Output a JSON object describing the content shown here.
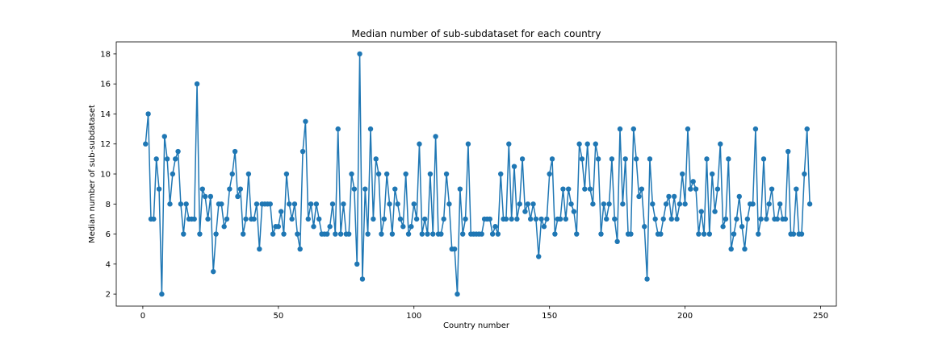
{
  "chart_data": {
    "type": "line",
    "title": "Median number of sub-subdataset for each country",
    "xlabel": "Country number",
    "ylabel": "Median number of sub-subdataset",
    "xlim": [
      -9.8,
      255.8
    ],
    "ylim": [
      1.2,
      18.8
    ],
    "xticks": [
      0,
      50,
      100,
      150,
      200,
      250
    ],
    "yticks": [
      2,
      4,
      6,
      8,
      10,
      12,
      14,
      16,
      18
    ],
    "grid": false,
    "marker": "circle",
    "color": "#1f77b4",
    "series": [
      {
        "values": [
          12,
          14,
          7,
          7,
          11,
          9,
          2,
          12.5,
          11,
          8,
          10,
          11,
          11.5,
          8,
          6,
          8,
          7,
          7,
          7,
          16,
          6,
          9,
          8.5,
          7,
          8.5,
          3.5,
          6,
          8,
          8,
          6.5,
          7,
          9,
          10,
          11.5,
          8.5,
          9,
          6,
          7,
          10,
          7,
          7,
          8,
          5,
          8,
          8,
          8,
          8,
          6,
          6.5,
          6.5,
          7.5,
          6,
          10,
          8,
          7,
          8,
          6,
          5,
          11.5,
          13.5,
          7,
          8,
          6.5,
          8,
          7,
          6,
          6,
          6,
          6.5,
          8,
          6,
          13,
          6,
          8,
          6,
          6,
          10,
          9,
          4,
          18,
          3,
          9,
          6,
          13,
          7,
          11,
          10,
          6,
          7,
          10,
          8,
          6,
          9,
          8,
          7,
          6.5,
          10,
          6,
          6.5,
          8,
          7,
          12,
          6,
          7,
          6,
          10,
          6,
          12.5,
          6,
          6,
          7,
          10,
          8,
          5,
          5,
          2,
          9,
          6,
          7,
          12,
          6,
          6,
          6,
          6,
          6,
          7,
          7,
          7,
          6,
          6.5,
          6,
          10,
          7,
          7,
          12,
          7,
          10.5,
          7,
          8,
          11,
          7.5,
          8,
          7,
          8,
          7,
          4.5,
          7,
          6.5,
          7,
          10,
          11,
          6,
          7,
          7,
          9,
          7,
          9,
          8,
          7.5,
          6,
          12,
          11,
          9,
          12,
          9,
          8,
          12,
          11,
          6,
          8,
          7,
          8,
          11,
          7,
          5.5,
          13,
          8,
          11,
          6,
          6,
          13,
          11,
          8.5,
          9,
          6.5,
          3,
          11,
          8,
          7,
          6,
          6,
          7,
          8,
          8.5,
          7,
          8.5,
          7,
          8,
          10,
          8,
          13,
          9,
          9.5,
          9,
          6,
          7.5,
          6,
          11,
          6,
          10,
          7.5,
          9,
          12,
          6.5,
          7,
          11,
          5,
          6,
          7,
          8.5,
          6.5,
          5,
          7,
          8,
          8,
          13,
          6,
          7,
          11,
          7,
          8,
          9,
          7,
          7,
          8,
          7,
          7,
          11.5,
          6,
          6,
          9,
          6,
          6,
          10,
          13,
          8
        ]
      }
    ]
  }
}
